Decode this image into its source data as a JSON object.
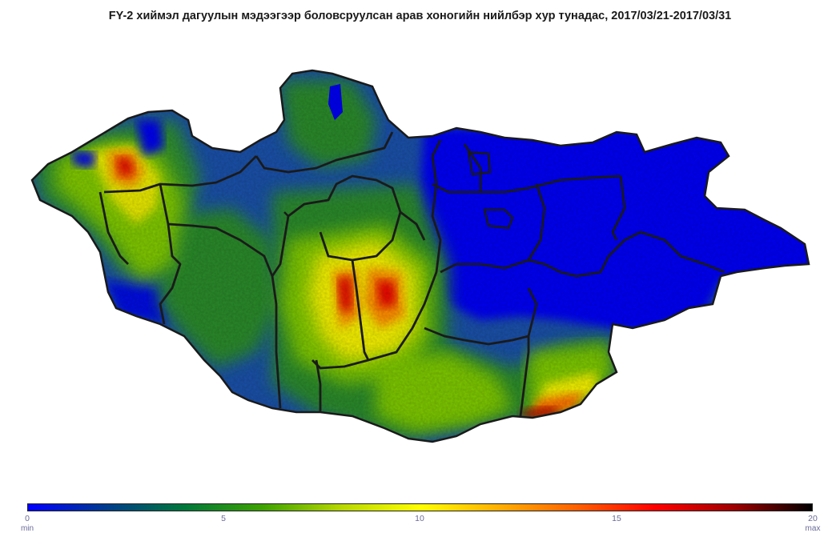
{
  "title": "FY-2 хиймэл дагуулын мэдээгээр боловсруулсан арав хоногийн нийлбэр хур тунадас, 2017/03/21-2017/03/31",
  "colorbar": {
    "min": 0,
    "max": 20,
    "ticks": [
      "0",
      "5",
      "10",
      "15",
      "20"
    ],
    "min_label": "min",
    "max_label": "max",
    "colors": [
      "#0000ff",
      "#003c8c",
      "#00783a",
      "#3ea300",
      "#b8d800",
      "#ffff00",
      "#ffb000",
      "#ff6000",
      "#ff0000",
      "#a00000",
      "#000000"
    ]
  },
  "map": {
    "region_colors": {
      "low_precip": "#0000f5",
      "mid_low": "#1a4ab0",
      "mid": "#2a8a2a",
      "mid_high": "#7ec800",
      "high": "#f4f000",
      "very_high": "#ff7a00",
      "max": "#d80000"
    },
    "border_color": "#1a1a1a"
  }
}
